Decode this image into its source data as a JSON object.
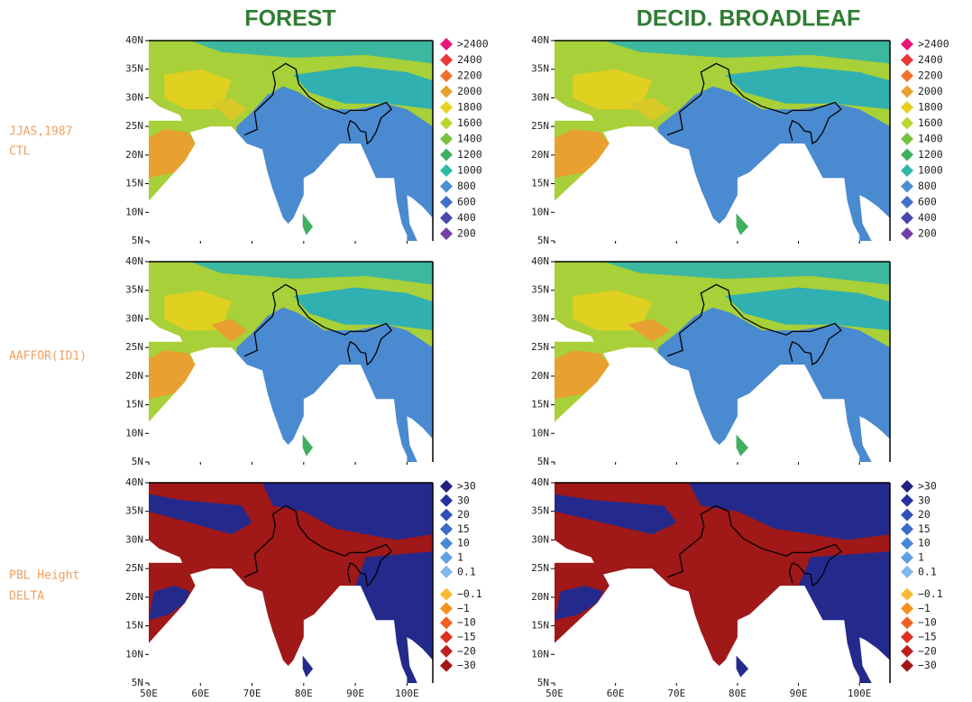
{
  "columns": [
    "FOREST",
    "DECID. BROADLEAF"
  ],
  "rows": [
    {
      "label": [
        "JJAS,1987",
        "CTL"
      ]
    },
    {
      "label": [
        "AAFFOR(ID1)"
      ]
    },
    {
      "label": [
        "PBL Height",
        "DELTA"
      ]
    }
  ],
  "lat_labels": [
    "40N",
    "35N",
    "30N",
    "25N",
    "20N",
    "15N",
    "10N",
    "5N"
  ],
  "lon_labels": [
    "50E",
    "60E",
    "70E",
    "80E",
    "90E",
    "100E"
  ],
  "legends": {
    "height": {
      "labels": [
        ">2400",
        "2400",
        "2200",
        "2000",
        "1800",
        "1600",
        "1400",
        "1200",
        "1000",
        "800",
        "600",
        "400",
        "200"
      ],
      "colors": [
        "#e8157a",
        "#e83a3a",
        "#f07030",
        "#e8a030",
        "#e8d020",
        "#b8d830",
        "#78c040",
        "#40b060",
        "#30b8a8",
        "#4a90d0",
        "#4070c8",
        "#4848b0",
        "#7040a8"
      ]
    },
    "delta": {
      "labels": [
        ">30",
        "30",
        "20",
        "15",
        "10",
        "1",
        "0.1",
        "−0.1",
        "−1",
        "−10",
        "−15",
        "−20",
        "−30"
      ],
      "colors": [
        "#202080",
        "#2830a0",
        "#3050b8",
        "#3a6cc8",
        "#4888d8",
        "#60a0e0",
        "#80b8e8",
        "#f8b830",
        "#f89020",
        "#f06020",
        "#e03020",
        "#c02020",
        "#a01818"
      ]
    }
  }
}
